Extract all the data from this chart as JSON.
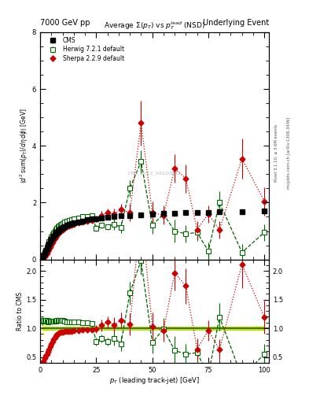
{
  "title_left": "7000 GeV pp",
  "title_right": "Underlying Event",
  "plot_title": "Average $\\Sigma(p_T)$ vs $p_T^{lead}$ (NSD)",
  "ylabel_main": "$\\langle d^2 sum(p_T)/d\\eta d\\phi\\rangle$ [GeV]",
  "ylabel_ratio": "Ratio to CMS",
  "xlabel": "$p_T$ (leading track-jet) [GeV]",
  "right_label1": "Rivet 3.1.10, ≥ 3.6M events",
  "right_label2": "mcplots.cern.ch [arXiv:1306.3436]",
  "watermark": "CMS_2011_S9120041",
  "cms_x": [
    1.0,
    1.5,
    2.0,
    2.5,
    3.0,
    3.5,
    4.0,
    4.5,
    5.0,
    5.5,
    6.0,
    6.5,
    7.0,
    7.5,
    8.0,
    8.5,
    9.0,
    9.5,
    10.0,
    11.0,
    12.0,
    13.0,
    14.0,
    15.0,
    17.0,
    19.0,
    21.0,
    23.0,
    25.0,
    27.5,
    30.0,
    33.0,
    36.0,
    40.0,
    45.0,
    50.0,
    55.0,
    60.0,
    65.0,
    70.0,
    75.0,
    80.0,
    90.0,
    100.0
  ],
  "cms_y": [
    0.08,
    0.14,
    0.21,
    0.29,
    0.38,
    0.47,
    0.55,
    0.63,
    0.7,
    0.77,
    0.83,
    0.88,
    0.92,
    0.96,
    1.0,
    1.03,
    1.06,
    1.09,
    1.12,
    1.16,
    1.2,
    1.23,
    1.26,
    1.29,
    1.33,
    1.36,
    1.39,
    1.42,
    1.44,
    1.47,
    1.49,
    1.51,
    1.53,
    1.55,
    1.58,
    1.6,
    1.62,
    1.63,
    1.64,
    1.65,
    1.66,
    1.67,
    1.68,
    1.72
  ],
  "cms_yerr": [
    0.01,
    0.01,
    0.01,
    0.01,
    0.01,
    0.01,
    0.01,
    0.01,
    0.01,
    0.01,
    0.01,
    0.01,
    0.01,
    0.01,
    0.01,
    0.01,
    0.01,
    0.01,
    0.01,
    0.01,
    0.01,
    0.01,
    0.01,
    0.01,
    0.01,
    0.01,
    0.01,
    0.01,
    0.01,
    0.01,
    0.01,
    0.01,
    0.01,
    0.01,
    0.02,
    0.02,
    0.02,
    0.02,
    0.03,
    0.03,
    0.04,
    0.04,
    0.05,
    0.07
  ],
  "herwig_x": [
    1.0,
    1.5,
    2.0,
    2.5,
    3.0,
    3.5,
    4.0,
    4.5,
    5.0,
    5.5,
    6.0,
    6.5,
    7.0,
    7.5,
    8.0,
    8.5,
    9.0,
    9.5,
    10.0,
    11.0,
    12.0,
    13.0,
    14.0,
    15.0,
    17.0,
    19.0,
    21.0,
    23.0,
    25.0,
    27.5,
    30.0,
    33.0,
    36.0,
    40.0,
    45.0,
    50.0,
    55.0,
    60.0,
    65.0,
    70.0,
    75.0,
    80.0,
    90.0,
    100.0
  ],
  "herwig_y": [
    0.09,
    0.16,
    0.24,
    0.33,
    0.43,
    0.52,
    0.62,
    0.71,
    0.79,
    0.87,
    0.93,
    0.99,
    1.04,
    1.09,
    1.14,
    1.17,
    1.21,
    1.24,
    1.27,
    1.31,
    1.34,
    1.37,
    1.4,
    1.43,
    1.47,
    1.5,
    1.52,
    1.54,
    1.1,
    1.2,
    1.15,
    1.25,
    1.12,
    2.5,
    3.45,
    1.2,
    1.6,
    1.0,
    0.9,
    0.95,
    0.3,
    2.0,
    0.25,
    0.95
  ],
  "herwig_yerr": [
    0.005,
    0.005,
    0.005,
    0.005,
    0.005,
    0.005,
    0.005,
    0.005,
    0.005,
    0.005,
    0.005,
    0.005,
    0.005,
    0.005,
    0.005,
    0.005,
    0.005,
    0.01,
    0.01,
    0.01,
    0.01,
    0.01,
    0.01,
    0.01,
    0.05,
    0.05,
    0.05,
    0.05,
    0.1,
    0.1,
    0.1,
    0.2,
    0.2,
    0.3,
    0.4,
    0.3,
    0.3,
    0.4,
    0.3,
    0.3,
    0.3,
    0.4,
    0.3,
    0.3
  ],
  "sherpa_x": [
    1.0,
    1.5,
    2.0,
    2.5,
    3.0,
    3.5,
    4.0,
    4.5,
    5.0,
    5.5,
    6.0,
    6.5,
    7.0,
    7.5,
    8.0,
    8.5,
    9.0,
    9.5,
    10.0,
    11.0,
    12.0,
    13.0,
    14.0,
    15.0,
    17.0,
    19.0,
    21.0,
    23.0,
    25.0,
    27.5,
    30.0,
    33.0,
    36.0,
    40.0,
    45.0,
    50.0,
    55.0,
    60.0,
    65.0,
    70.0,
    75.0,
    80.0,
    90.0,
    100.0
  ],
  "sherpa_y": [
    0.03,
    0.06,
    0.1,
    0.15,
    0.21,
    0.28,
    0.35,
    0.43,
    0.51,
    0.59,
    0.67,
    0.74,
    0.8,
    0.86,
    0.91,
    0.95,
    0.99,
    1.02,
    1.05,
    1.1,
    1.14,
    1.17,
    1.2,
    1.23,
    1.28,
    1.32,
    1.35,
    1.38,
    1.42,
    1.55,
    1.65,
    1.6,
    1.75,
    1.65,
    4.8,
    1.65,
    1.55,
    3.2,
    2.85,
    1.05,
    1.6,
    1.05,
    3.55,
    2.05
  ],
  "sherpa_yerr": [
    0.003,
    0.003,
    0.003,
    0.003,
    0.003,
    0.003,
    0.003,
    0.003,
    0.003,
    0.005,
    0.005,
    0.005,
    0.005,
    0.005,
    0.005,
    0.005,
    0.01,
    0.01,
    0.01,
    0.01,
    0.01,
    0.01,
    0.01,
    0.01,
    0.05,
    0.05,
    0.05,
    0.05,
    0.1,
    0.15,
    0.15,
    0.2,
    0.2,
    0.3,
    0.8,
    0.4,
    0.3,
    0.5,
    0.5,
    0.3,
    0.3,
    0.3,
    0.7,
    0.5
  ],
  "ylim_main": [
    0,
    8
  ],
  "ylim_ratio": [
    0.4,
    2.2
  ],
  "xlim": [
    0,
    102
  ],
  "cms_color": "#000000",
  "herwig_color": "#006600",
  "sherpa_color": "#cc0000",
  "ratio_band_yellow": "#ffff99",
  "ratio_band_green": "#99cc00",
  "ratio_line_color": "#336600"
}
